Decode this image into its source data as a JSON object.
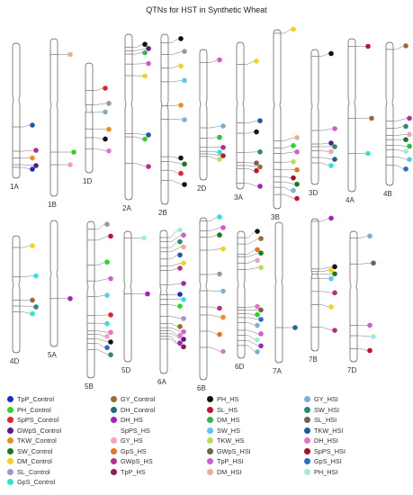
{
  "title": "QTNs for HST in Synthetic Wheat",
  "colors": {
    "TpP_Control": "#1a2fbf",
    "PH_Control": "#2ad62a",
    "SpPS_Control": "#e8202a",
    "GWpS_Control": "#5b1a8c",
    "TKW_Control": "#f28c1c",
    "SW_Control": "#1a7a1a",
    "DM_Control": "#f2d21a",
    "SL_Control": "#a98fd6",
    "GpS_Control": "#2ae6d6",
    "GY_Control": "#9c6a2a",
    "DH_Control": "#1a6f7a",
    "PH_HS": "#111111",
    "SL_HS": "#c8102e",
    "DM_HS": "#2db84a",
    "DH_HS": "#a322b8",
    "SW_HS": "#57c8f0",
    "GY_HS": "#f5a0c0",
    "GpS_HS": "#e8741a",
    "GWpS_HS": "#b82c8c",
    "TpP_HS": "#8a1a5a",
    "TKW_HS": "#b5dc5a",
    "GWpS_HSI": "#6b6b3a",
    "TpP_HSI": "#d65ad6",
    "DM_HSI": "#e8b090",
    "GY_HSI": "#7ab0d6",
    "SW_HSI": "#2a8a70",
    "SL_HSI": "#7a5a5a",
    "TKW_HSI": "#1a5aa8",
    "DH_HSI": "#e874c8",
    "SpPS_HSI": "#a0102a",
    "GpS_HSI": "#2a6ac8",
    "PH_HSI": "#a0ecd8"
  },
  "legend": [
    [
      "TpP_Control",
      "GY_Control",
      "PH_HS",
      "GY_HSI"
    ],
    [
      "PH_Control",
      "DH_Control",
      "SL_HS",
      "SW_HSI"
    ],
    [
      "SpPS_Control",
      "DH_HS",
      "DM_HS",
      "SL_HSI"
    ],
    [
      "GWpS_Control",
      "SpPS_HS",
      "SW_HS",
      "TKW_HSI"
    ],
    [
      "TKW_Control",
      "GY_HS",
      "TKW_HS",
      "DH_HSI"
    ],
    [
      "SW_Control",
      "GpS_HS",
      "GWpS_HSI",
      "SpPS_HSI"
    ],
    [
      "DM_Control",
      "GWpS_HS",
      "TpP_HSI",
      "GpS_HSI"
    ],
    [
      "SL_Control",
      "TpP_HS",
      "DM_HSI",
      "PH_HSI"
    ],
    [
      "GpS_Control",
      null,
      null,
      null
    ]
  ],
  "chromosomes": [
    {
      "name": "1A",
      "qtn": [
        [
          "TKW_HSI",
          0.62
        ],
        [
          "GWpS_HS",
          0.8
        ],
        [
          "TKW_Control",
          0.85
        ],
        [
          "GWpS_Control",
          0.9
        ],
        [
          "TpP_Control",
          0.92
        ]
      ]
    },
    {
      "name": "1B",
      "qtn": [
        [
          "DM_HSI",
          0.1
        ],
        [
          "PH_Control",
          0.72
        ],
        [
          "GY_HS",
          0.8
        ]
      ]
    },
    {
      "name": "1D",
      "qtn": [
        [
          "SpPS_Control",
          0.25
        ],
        [
          "SpPS_HS",
          0.38
        ],
        [
          "GY_HSI",
          0.45
        ],
        [
          "TKW_Control",
          0.6
        ],
        [
          "PH_HS",
          0.68
        ],
        [
          "DH_HSI",
          0.78
        ]
      ]
    },
    {
      "name": "2A",
      "qtn": [
        [
          "PH_HS",
          0.08
        ],
        [
          "GWpS_Control",
          0.1
        ],
        [
          "DM_HS",
          0.12
        ],
        [
          "TpP_HSI",
          0.18
        ],
        [
          "DM_Control",
          0.25
        ],
        [
          "TKW_HSI",
          0.6
        ],
        [
          "PH_Control",
          0.62
        ],
        [
          "GWpS_HS",
          0.78
        ]
      ]
    },
    {
      "name": "2B",
      "qtn": [
        [
          "PH_HS",
          0.05
        ],
        [
          "SpPS_HS",
          0.12
        ],
        [
          "DM_Control",
          0.2
        ],
        [
          "SW_HS",
          0.28
        ],
        [
          "TKW_Control",
          0.42
        ],
        [
          "GY_HSI",
          0.5
        ],
        [
          "PH_HS",
          0.72
        ],
        [
          "SW_Control",
          0.75
        ],
        [
          "SpPS_Control",
          0.8
        ],
        [
          "PH_HS",
          0.86
        ]
      ]
    },
    {
      "name": "2D",
      "qtn": [
        [
          "TpP_HSI",
          0.1
        ],
        [
          "GY_HSI",
          0.6
        ],
        [
          "DM_HS",
          0.68
        ],
        [
          "GWpS_HS",
          0.75
        ],
        [
          "GpS_Control",
          0.78
        ],
        [
          "SL_HS",
          0.8
        ],
        [
          "TKW_HS",
          0.82
        ]
      ]
    },
    {
      "name": "3A",
      "qtn": [
        [
          "DM_Control",
          0.15
        ],
        [
          "TKW_HSI",
          0.55
        ],
        [
          "PH_HS",
          0.62
        ],
        [
          "SW_HSI",
          0.75
        ],
        [
          "SL_HSI",
          0.82
        ],
        [
          "GY_Control",
          0.84
        ],
        [
          "SL_HS",
          0.86
        ],
        [
          "DH_HS",
          0.96
        ]
      ]
    },
    {
      "name": "3B",
      "qtn": [
        [
          "DM_Control",
          0.02
        ],
        [
          "DM_HSI",
          0.62
        ],
        [
          "PH_Control",
          0.66
        ],
        [
          "TpP_HSI",
          0.69
        ],
        [
          "TKW_HS",
          0.74
        ],
        [
          "GpS_HS",
          0.78
        ],
        [
          "SpPS_HSI",
          0.82
        ],
        [
          "SW_Control",
          0.85
        ],
        [
          "GY_HSI",
          0.88
        ],
        [
          "SL_HS",
          0.92
        ]
      ]
    },
    {
      "name": "3D",
      "qtn": [
        [
          "PH_HS",
          0.05
        ],
        [
          "TpP_HSI",
          0.6
        ],
        [
          "GWpS_Control",
          0.7
        ],
        [
          "SW_HSI",
          0.72
        ],
        [
          "GY_HS",
          0.75
        ],
        [
          "TKW_HSI",
          0.8
        ],
        [
          "GpS_Control",
          0.84
        ]
      ]
    },
    {
      "name": "4A",
      "qtn": [
        [
          "SL_HS",
          0.05
        ],
        [
          "GY_Control",
          0.52
        ],
        [
          "GpS_Control",
          0.75
        ]
      ]
    },
    {
      "name": "4B",
      "qtn": [
        [
          "GY_Control",
          0.05
        ],
        [
          "GWpS_HS",
          0.55
        ],
        [
          "SW_HSI",
          0.6
        ],
        [
          "GY_HS",
          0.65
        ],
        [
          "SW_Control",
          0.68
        ],
        [
          "DM_HS",
          0.72
        ],
        [
          "PH_HSI",
          0.75
        ],
        [
          "SW_HS",
          0.8
        ],
        [
          "GpS_HSI",
          0.86
        ]
      ]
    },
    {
      "name": "4D",
      "qtn": [
        [
          "DM_Control",
          0.1
        ],
        [
          "GpS_Control",
          0.35
        ],
        [
          "GY_Control",
          0.55
        ],
        [
          "SW_HSI",
          0.6
        ],
        [
          "GpS_Control",
          0.65
        ]
      ]
    },
    {
      "name": "5A",
      "qtn": [
        [
          "DH_HS",
          0.62
        ]
      ]
    },
    {
      "name": "5B",
      "qtn": [
        [
          "SpPS_HS",
          0.05
        ],
        [
          "SL_HS",
          0.12
        ],
        [
          "PH_Control",
          0.28
        ],
        [
          "TpP_HSI",
          0.38
        ],
        [
          "SW_HS",
          0.48
        ],
        [
          "SpPS_Control",
          0.6
        ],
        [
          "GpS_Control",
          0.65
        ],
        [
          "DH_HSI",
          0.7
        ],
        [
          "GY_HS",
          0.72
        ],
        [
          "PH_HS",
          0.75
        ],
        [
          "GpS_HSI",
          0.78
        ],
        [
          "SW_HSI",
          0.82
        ]
      ]
    },
    {
      "name": "5D",
      "qtn": [
        [
          "PH_HSI",
          0.05
        ],
        [
          "DH_HS",
          0.48
        ]
      ]
    },
    {
      "name": "6A",
      "qtn": [
        [
          "PH_HSI",
          0.05
        ],
        [
          "TpP_HSI",
          0.08
        ],
        [
          "SW_HSI",
          0.12
        ],
        [
          "DM_HSI",
          0.15
        ],
        [
          "TKW_HSI",
          0.2
        ],
        [
          "DM_Control",
          0.25
        ],
        [
          "GWpS_HS",
          0.28
        ],
        [
          "DH_HS",
          0.38
        ],
        [
          "TpP_Control",
          0.45
        ],
        [
          "GpS_Control",
          0.48
        ],
        [
          "PH_Control",
          0.52
        ],
        [
          "SL_Control",
          0.6
        ],
        [
          "GY_Control",
          0.65
        ],
        [
          "TpP_HSI",
          0.68
        ],
        [
          "DH_HSI",
          0.7
        ],
        [
          "GWpS_Control",
          0.72
        ],
        [
          "DH_HS",
          0.74
        ],
        [
          "TpP_HS",
          0.76
        ]
      ]
    },
    {
      "name": "6B",
      "qtn": [
        [
          "GpS_Control",
          0.02
        ],
        [
          "TpP_HSI",
          0.08
        ],
        [
          "SW_Control",
          0.12
        ],
        [
          "DM_Control",
          0.2
        ],
        [
          "SpPS_HS",
          0.35
        ],
        [
          "GY_HSI",
          0.45
        ],
        [
          "GWpS_HS",
          0.55
        ],
        [
          "TKW_Control",
          0.6
        ],
        [
          "GpS_HS",
          0.7
        ],
        [
          "DH_HSI",
          0.8
        ]
      ]
    },
    {
      "name": "6D",
      "qtn": [
        [
          "PH_HS",
          0.05
        ],
        [
          "GY_Control",
          0.1
        ],
        [
          "GpS_HS",
          0.18
        ],
        [
          "SW_Control",
          0.2
        ],
        [
          "GY_HS",
          0.25
        ],
        [
          "TKW_HS",
          0.3
        ],
        [
          "DH_HSI",
          0.6
        ],
        [
          "GWpS_HSI",
          0.62
        ],
        [
          "PH_Control",
          0.65
        ],
        [
          "GpS_HSI",
          0.68
        ],
        [
          "GY_HSI",
          0.72
        ],
        [
          "TpP_HSI",
          0.78
        ],
        [
          "PH_HSI",
          0.82
        ],
        [
          "DH_HS",
          0.86
        ],
        [
          "GY_HSI",
          0.9
        ]
      ]
    },
    {
      "name": "7A",
      "qtn": [
        [
          "DH_Control",
          0.75
        ]
      ]
    },
    {
      "name": "7B",
      "qtn": [
        [
          "DH_HS",
          0.02
        ],
        [
          "PH_HS",
          0.38
        ],
        [
          "DM_Control",
          0.4
        ],
        [
          "SW_Control",
          0.42
        ],
        [
          "SW_HS",
          0.45
        ],
        [
          "GWpS_HS",
          0.55
        ],
        [
          "DM_Control",
          0.65
        ],
        [
          "GWpS_HS",
          0.82
        ]
      ]
    },
    {
      "name": "7D",
      "qtn": [
        [
          "GY_HSI",
          0.05
        ],
        [
          "SL_HSI",
          0.25
        ],
        [
          "TpP_HSI",
          0.72
        ],
        [
          "PH_HSI",
          0.8
        ],
        [
          "SL_HS",
          0.9
        ]
      ]
    }
  ]
}
